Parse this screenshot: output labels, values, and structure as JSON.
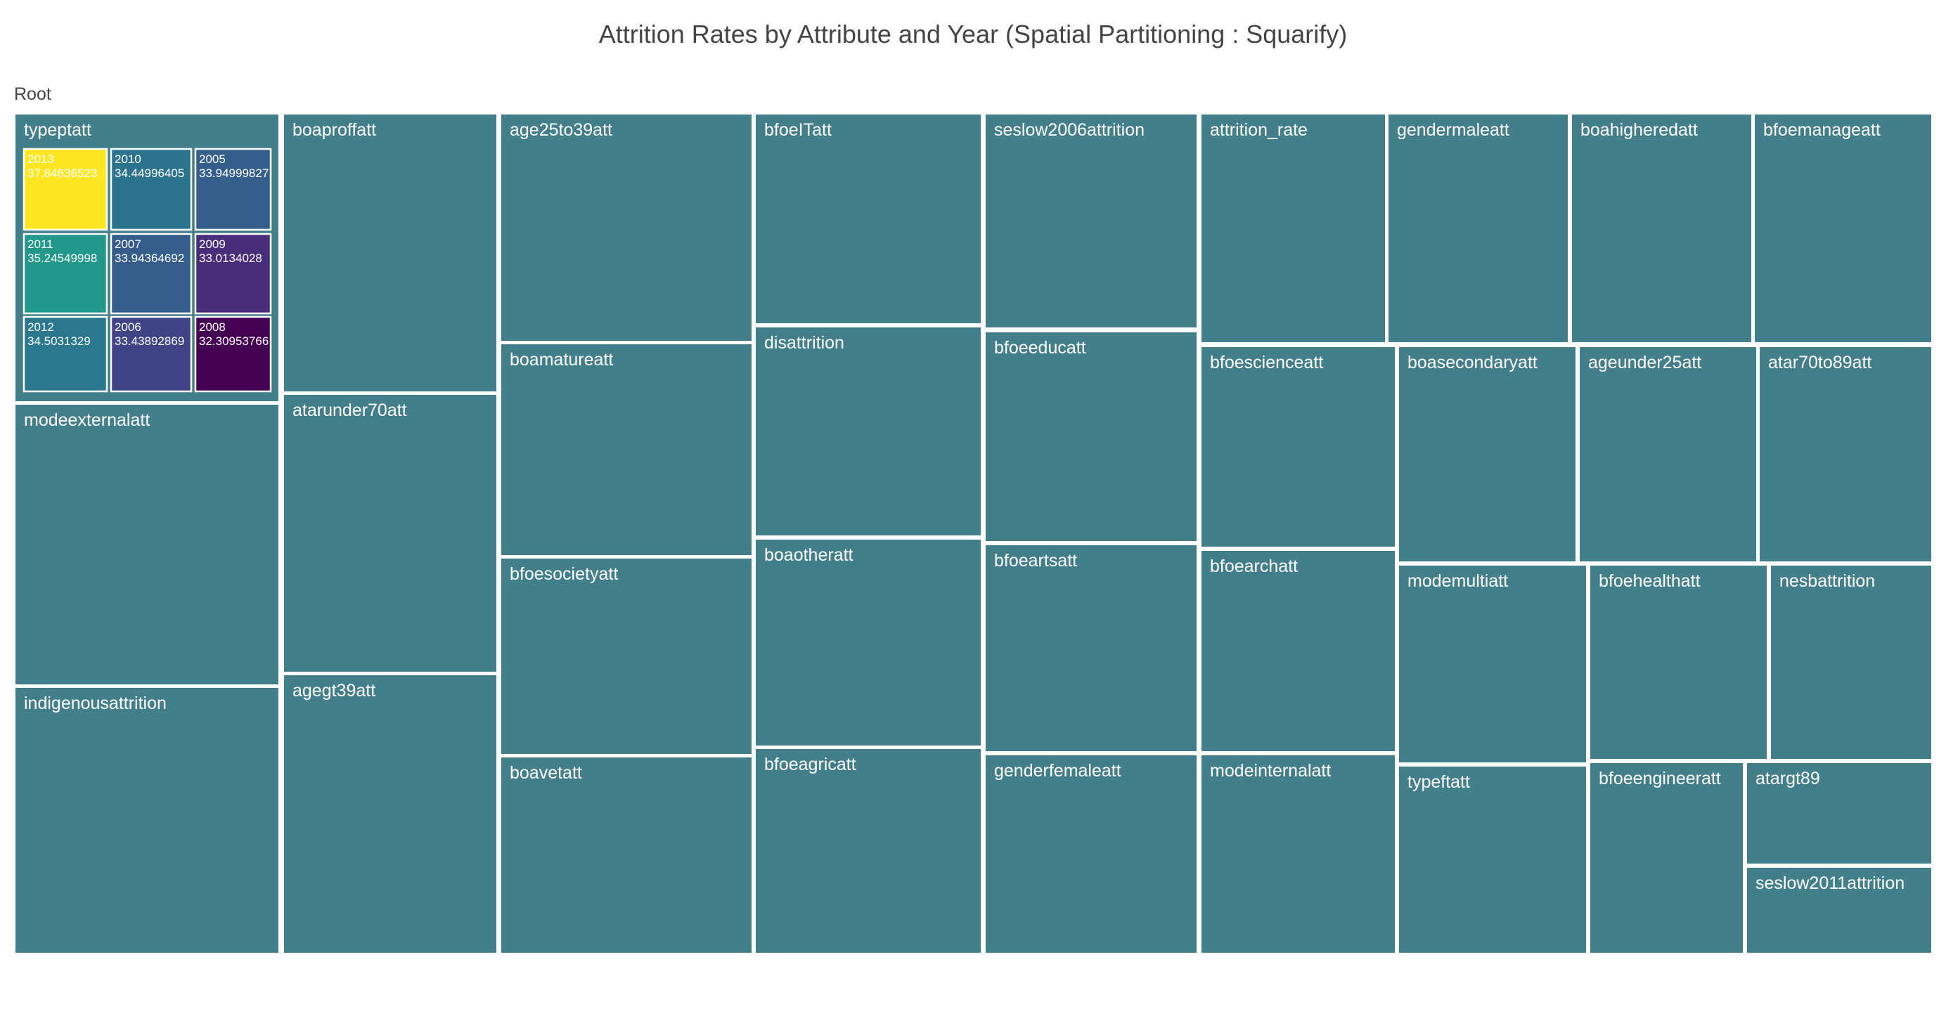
{
  "title": "Attrition Rates by Attribute and Year (Spatial Partitioning : Squarify)",
  "root_label": "Root",
  "colors": {
    "tile": "#437F8B",
    "border": "#ffffff",
    "title_text": "#444444"
  },
  "chart_data": {
    "type": "treemap",
    "title": "Attrition Rates by Attribute and Year (Spatial Partitioning : Squarify)",
    "root": "Root",
    "colorscale": "Viridis",
    "color_range": [
      32.30953766,
      37.84636523
    ],
    "expanded_parent": "typeptatt",
    "children_of_expanded": [
      {
        "year": "2013",
        "value": "37.84636523",
        "v": 37.84636523
      },
      {
        "year": "2010",
        "value": "34.44996405",
        "v": 34.44996405
      },
      {
        "year": "2005",
        "value": "33.94999827",
        "v": 33.94999827
      },
      {
        "year": "2011",
        "value": "35.24549998",
        "v": 35.24549998
      },
      {
        "year": "2007",
        "value": "33.94364692",
        "v": 33.94364692
      },
      {
        "year": "2009",
        "value": "33.0134028",
        "v": 33.0134028
      },
      {
        "year": "2012",
        "value": "34.5031329",
        "v": 34.5031329
      },
      {
        "year": "2006",
        "value": "33.43892869",
        "v": 33.43892869
      },
      {
        "year": "2008",
        "value": "32.30953766",
        "v": 32.30953766
      }
    ],
    "categories": [
      "typeptatt",
      "modeexternalatt",
      "indigenousattrition",
      "boaproffatt",
      "atarunder70att",
      "agegt39att",
      "age25to39att",
      "boamatureatt",
      "bfoesocietyatt",
      "boavetatt",
      "bfoeITatt",
      "disattrition",
      "boaotheratt",
      "bfoeagricatt",
      "seslow2006attrition",
      "bfoeeducatt",
      "bfoeartsatt",
      "genderfemaleatt",
      "attrition_rate",
      "gendermaleatt",
      "boahigheredatt",
      "bfoemanageatt",
      "bfoescienceatt",
      "bfoearchatt",
      "modeinternalatt",
      "boasecondaryatt",
      "ageunder25att",
      "atar70to89att",
      "modemultiatt",
      "typeftatt",
      "bfoehealthatt",
      "nesbattrition",
      "bfoeengineeratt",
      "atargt89",
      "seslow2011attrition"
    ]
  }
}
